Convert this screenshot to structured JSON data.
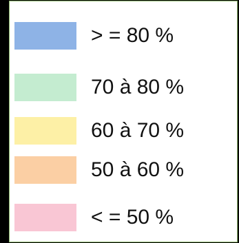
{
  "legend": {
    "items": [
      {
        "label": "> = 80 %",
        "color": "#8eb3e6"
      },
      {
        "label": "70 à 80 %",
        "color": "#c4ecd0"
      },
      {
        "label": "60 à 70 %",
        "color": "#fdf0a6"
      },
      {
        "label": "50 à 60 %",
        "color": "#fbcfa4"
      },
      {
        "label": "< = 50 %",
        "color": "#f9c6d4"
      }
    ]
  }
}
